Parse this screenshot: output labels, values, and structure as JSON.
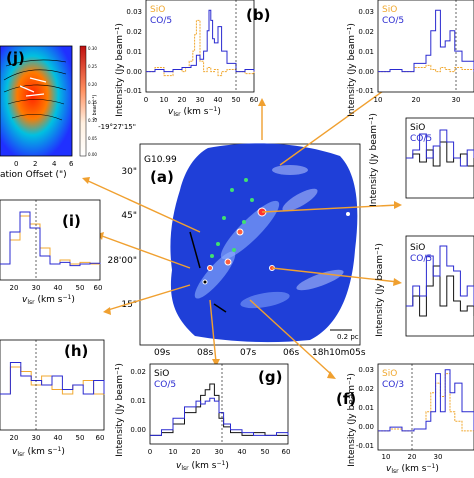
{
  "colors": {
    "sio": "#f0a830",
    "co": "#2a2ad0",
    "black_line": "#111111",
    "arrow": "#f0a030",
    "map_blue": "#1f3fd8",
    "map_light": "#c8d6ff"
  },
  "map": {
    "letter": "(a)",
    "source": "G10.99",
    "dec_ticks": [
      "-19°27'15\"",
      "30\"",
      "45\"",
      "28'00\"",
      "15\""
    ],
    "ra_ticks": [
      "09s",
      "08s",
      "07s",
      "06s",
      "18h10m05s"
    ],
    "scalebar": "0.2 pc"
  },
  "panels": {
    "b": {
      "letter": "(b)",
      "legend": [
        "SiO",
        "CO/5"
      ],
      "yticks": [
        "0.03",
        "0.02",
        "0.01",
        "0.00",
        "-0.01"
      ],
      "xticks": [
        "0",
        "10",
        "20",
        "30",
        "40",
        "50",
        "60"
      ]
    },
    "tr": {
      "legend": [
        "SiO",
        "CO/5"
      ],
      "yticks": [
        "0.03",
        "0.02",
        "0.01",
        "0.00",
        "-0.01"
      ],
      "xticks": [
        "10",
        "20",
        "30"
      ]
    },
    "r1": {
      "legend": [
        "SiO",
        "CO/5"
      ]
    },
    "r2": {
      "legend": [
        "SiO",
        "CO/5"
      ]
    },
    "i": {
      "letter": "(i)",
      "xticks": [
        "20",
        "30",
        "40",
        "50",
        "60"
      ]
    },
    "h": {
      "letter": "(h)",
      "xticks": [
        "20",
        "30",
        "40",
        "50",
        "60"
      ]
    },
    "g": {
      "letter": "(g)",
      "legend": [
        "SiO",
        "CO/5"
      ],
      "yticks": [
        "0.02",
        "0.01",
        "0.00"
      ],
      "xticks": [
        "0",
        "10",
        "20",
        "30",
        "40",
        "50",
        "60"
      ]
    },
    "f": {
      "letter": "(f)",
      "legend": [
        "SiO",
        "CO/3"
      ],
      "yticks": [
        "0.03",
        "0.02",
        "0.01",
        "0.00",
        "-0.01"
      ],
      "xticks": [
        "10",
        "20",
        "30"
      ]
    },
    "j": {
      "letter": "(j)",
      "xlabel": "ation Offset (\")",
      "xticks": [
        "0",
        "2",
        "4",
        "6"
      ],
      "cbar_ticks": [
        "0.30",
        "0.25",
        "0.20",
        "0.15",
        "0.10",
        "0.05",
        "0.00"
      ],
      "cbar_label": "y beam⁻¹)"
    }
  },
  "axis_text": {
    "xlabel_main": "v",
    "xlabel_sub": "lsr",
    "xlabel_unit": " (km s",
    "xlabel_pow": "−1",
    "xlabel_end": ")",
    "ylabel": "Intensity (Jy beam⁻¹)"
  },
  "chart_data": [
    {
      "type": "line",
      "title": "(b)",
      "xlabel": "vlsr (km s−1)",
      "ylabel": "Intensity (Jy beam−1)",
      "xlim": [
        0,
        60
      ],
      "ylim": [
        -0.01,
        0.035
      ],
      "series": [
        {
          "name": "SiO",
          "x": [
            0,
            5,
            10,
            15,
            20,
            22,
            24,
            26,
            27,
            28,
            30,
            32,
            34,
            36,
            38,
            40,
            42,
            45,
            50,
            55,
            60
          ],
          "y": [
            0.0,
            0.002,
            -0.002,
            0.001,
            0.0,
            0.002,
            0.005,
            0.01,
            0.018,
            0.025,
            0.005,
            0.0,
            0.002,
            0.0,
            0.001,
            -0.002,
            0.0,
            0.001,
            0.0,
            -0.001,
            0.0
          ]
        },
        {
          "name": "CO/5",
          "x": [
            0,
            5,
            10,
            15,
            20,
            25,
            28,
            30,
            32,
            34,
            35,
            36,
            37,
            38,
            40,
            42,
            45,
            50,
            55,
            60
          ],
          "y": [
            0.0,
            0.001,
            0.0,
            0.001,
            0.002,
            0.003,
            0.008,
            0.006,
            0.01,
            0.02,
            0.03,
            0.025,
            0.016,
            0.014,
            0.022,
            0.01,
            0.004,
            0.0,
            0.001,
            0.0
          ]
        }
      ]
    },
    {
      "type": "line",
      "title": "",
      "xlabel": "vlsr (km s−1)",
      "ylabel": "Intensity (Jy beam−1)",
      "xlim": [
        0,
        40
      ],
      "ylim": [
        -0.01,
        0.035
      ],
      "series": [
        {
          "name": "SiO",
          "x": [
            0,
            5,
            10,
            15,
            20,
            22,
            24,
            26,
            28,
            30,
            32,
            35,
            40
          ],
          "y": [
            0.0,
            0.001,
            0.0,
            0.002,
            0.003,
            0.001,
            0.0,
            0.002,
            0.001,
            0.0,
            0.002,
            0.001,
            0.0
          ]
        },
        {
          "name": "CO/5",
          "x": [
            0,
            5,
            10,
            15,
            20,
            22,
            24,
            26,
            28,
            30,
            32,
            35,
            40
          ],
          "y": [
            0.0,
            0.001,
            0.0,
            0.004,
            0.008,
            0.02,
            0.03,
            0.012,
            0.015,
            0.02,
            0.01,
            0.005,
            0.0
          ]
        }
      ]
    },
    {
      "type": "line",
      "title": "(g)",
      "xlabel": "vlsr (km s−1)",
      "ylabel": "Intensity (Jy beam−1)",
      "xlim": [
        0,
        60
      ],
      "ylim": [
        -0.003,
        0.025
      ],
      "series": [
        {
          "name": "SiO",
          "x": [
            0,
            5,
            10,
            15,
            20,
            22,
            24,
            26,
            28,
            30,
            32,
            35,
            40,
            45,
            50,
            55,
            60
          ],
          "y": [
            0.0,
            0.001,
            0.004,
            0.008,
            0.01,
            0.014,
            0.016,
            0.018,
            0.014,
            0.006,
            0.003,
            0.001,
            0.0,
            0.001,
            0.0,
            0.0,
            0.0
          ]
        },
        {
          "name": "CO/5",
          "x": [
            0,
            5,
            10,
            15,
            20,
            22,
            24,
            26,
            28,
            30,
            32,
            35,
            40,
            45,
            50,
            55,
            60
          ],
          "y": [
            0.0,
            0.002,
            0.006,
            0.01,
            0.012,
            0.011,
            0.012,
            0.013,
            0.012,
            0.008,
            0.004,
            0.002,
            0.001,
            0.0,
            0.0,
            0.001,
            0.0
          ]
        }
      ]
    },
    {
      "type": "line",
      "title": "(f)",
      "xlabel": "vlsr (km s−1)",
      "ylabel": "Intensity (Jy beam−1)",
      "xlim": [
        0,
        40
      ],
      "ylim": [
        -0.01,
        0.035
      ],
      "series": [
        {
          "name": "SiO",
          "x": [
            0,
            5,
            10,
            15,
            20,
            22,
            24,
            26,
            28,
            30,
            32,
            35,
            40
          ],
          "y": [
            0.0,
            0.001,
            0.0,
            0.001,
            0.01,
            0.02,
            0.025,
            0.018,
            0.03,
            0.01,
            0.005,
            0.0,
            0.001
          ]
        },
        {
          "name": "CO/3",
          "x": [
            0,
            5,
            10,
            15,
            20,
            22,
            24,
            26,
            28,
            30,
            32,
            35,
            40
          ],
          "y": [
            0.0,
            0.002,
            0.0,
            0.001,
            0.005,
            0.01,
            0.03,
            0.01,
            0.032,
            0.02,
            0.025,
            0.01,
            0.0
          ]
        }
      ]
    }
  ]
}
